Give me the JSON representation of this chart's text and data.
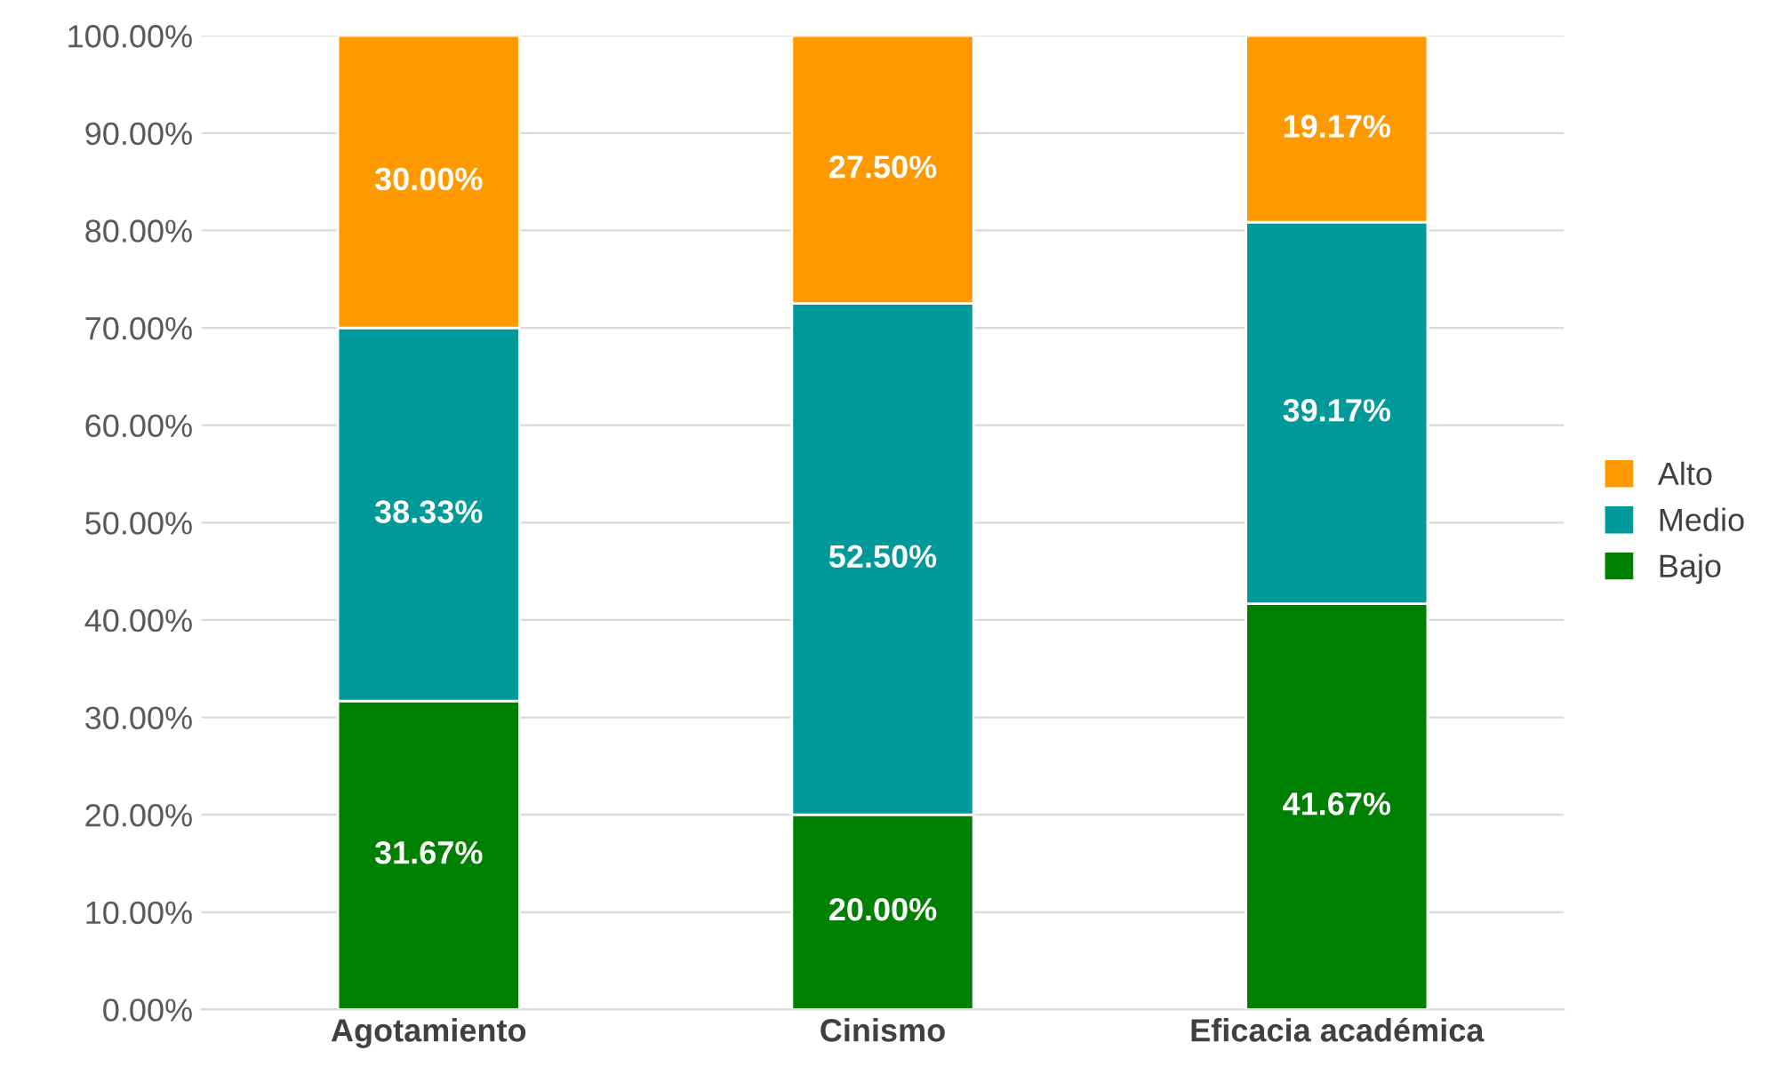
{
  "chart_data": {
    "type": "bar",
    "stacked": true,
    "categories": [
      "Agotamiento",
      "Cinismo",
      "Eficacia académica"
    ],
    "series": [
      {
        "name": "Bajo",
        "color": "#008000",
        "values": [
          31.67,
          20.0,
          41.67
        ],
        "value_labels": [
          "31.67%",
          "20.00%",
          "41.67%"
        ]
      },
      {
        "name": "Medio",
        "color": "#009999",
        "values": [
          38.33,
          52.5,
          39.17
        ],
        "value_labels": [
          "38.33%",
          "52.50%",
          "39.17%"
        ]
      },
      {
        "name": "Alto",
        "color": "#ff9900",
        "values": [
          30.0,
          27.5,
          19.17
        ],
        "value_labels": [
          "30.00%",
          "27.50%",
          "19.17%"
        ]
      }
    ],
    "ylim": [
      0,
      100
    ],
    "yticks": [
      {
        "value": 0,
        "label": "0.00%"
      },
      {
        "value": 10,
        "label": "10.00%"
      },
      {
        "value": 20,
        "label": "20.00%"
      },
      {
        "value": 30,
        "label": "30.00%"
      },
      {
        "value": 40,
        "label": "40.00%"
      },
      {
        "value": 50,
        "label": "50.00%"
      },
      {
        "value": 60,
        "label": "60.00%"
      },
      {
        "value": 70,
        "label": "70.00%"
      },
      {
        "value": 80,
        "label": "80.00%"
      },
      {
        "value": 90,
        "label": "90.00%"
      },
      {
        "value": 100,
        "label": "100.00%"
      }
    ],
    "grid": "y",
    "legend": "right"
  }
}
